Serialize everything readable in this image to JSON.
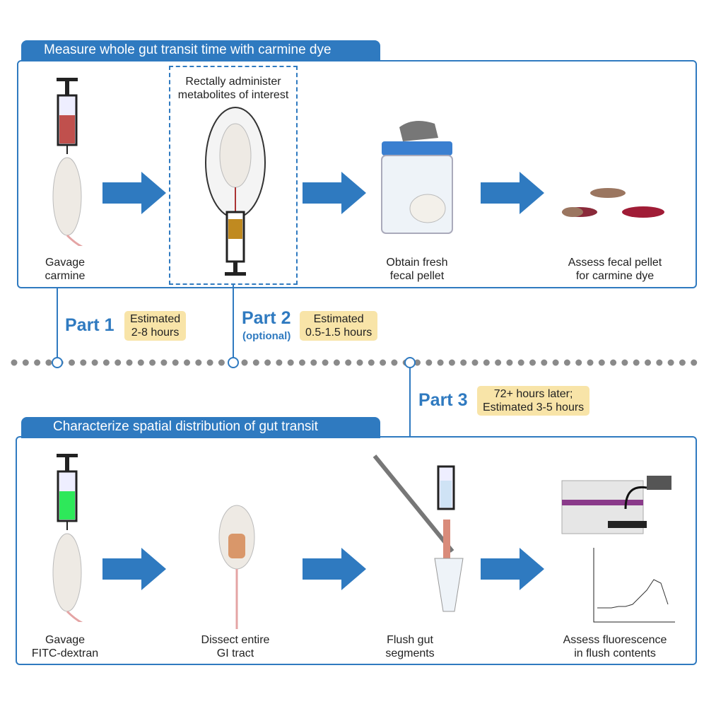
{
  "top": {
    "title": "Measure whole gut transit time with carmine dye",
    "steps": [
      {
        "label": "Gavage\ncarmine"
      },
      {
        "label": "Rectally administer\nmetabolites of interest"
      },
      {
        "label": "Obtain fresh\nfecal pellet"
      },
      {
        "label": "Assess fecal pellet\nfor carmine dye"
      }
    ]
  },
  "bottom": {
    "title": "Characterize spatial distribution of gut transit",
    "steps": [
      {
        "label": "Gavage\nFITC-dextran"
      },
      {
        "label": "Dissect entire\nGI tract"
      },
      {
        "label": "Flush gut\nsegments"
      },
      {
        "label": "Assess fluorescence\nin flush contents"
      }
    ]
  },
  "parts": [
    {
      "label": "Part 1",
      "estimate": "Estimated\n2-8 hours"
    },
    {
      "label": "Part 2",
      "note": "(optional)",
      "estimate": "Estimated\n0.5-1.5 hours"
    },
    {
      "label": "Part 3",
      "estimate": "72+ hours later;\nEstimated 3-5 hours"
    }
  ],
  "colors": {
    "accent": "#2f7ac0",
    "estimate_bg": "#f8e4a8",
    "dots": "#8a8a8a",
    "carmine": "#c0504d",
    "fitc": "#2ee85a"
  }
}
